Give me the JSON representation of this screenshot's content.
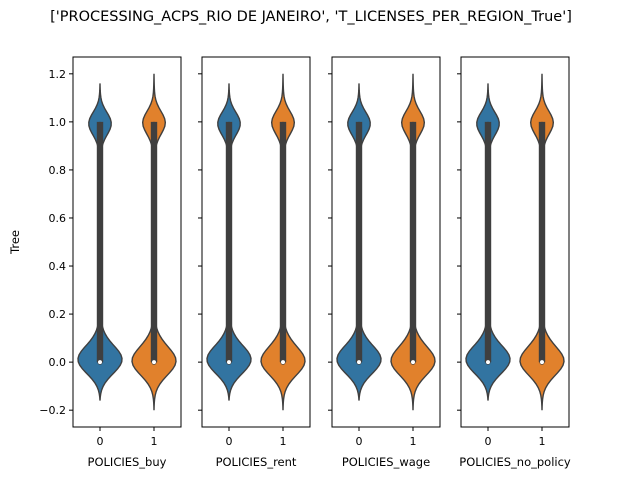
{
  "figure": {
    "title": "['PROCESSING_ACPS_RIO DE JANEIRO', 'T_LICENSES_PER_REGION_True']"
  },
  "chart_data": {
    "type": "violin",
    "title": "['PROCESSING_ACPS_RIO DE JANEIRO', 'T_LICENSES_PER_REGION_True']",
    "ylabel": "Tree",
    "ylim": [
      -0.27,
      1.27
    ],
    "yticks": [
      -0.2,
      0.0,
      0.2,
      0.4,
      0.6,
      0.8,
      1.0,
      1.2
    ],
    "ytick_labels": [
      "−0.2",
      "0.0",
      "0.2",
      "0.4",
      "0.6",
      "0.8",
      "1.0",
      "1.2"
    ],
    "shared_y": true,
    "grid": false,
    "colors": {
      "0": "#3274a1",
      "1": "#e1812c",
      "box": "#3f3f3f",
      "outline": "#3f3f3f"
    },
    "panels": [
      {
        "xlabel": "POLICIES_buy",
        "categories": [
          "0",
          "1"
        ],
        "violins": [
          {
            "category": "0",
            "min": -0.16,
            "max": 1.16,
            "q1": 0.0,
            "median": 0.0,
            "q3": 1.0,
            "whisker_low": 0.0,
            "whisker_high": 1.0
          },
          {
            "category": "1",
            "min": -0.2,
            "max": 1.2,
            "q1": 0.0,
            "median": 0.0,
            "q3": 1.0,
            "whisker_low": 0.0,
            "whisker_high": 1.0
          }
        ]
      },
      {
        "xlabel": "POLICIES_rent",
        "categories": [
          "0",
          "1"
        ],
        "violins": [
          {
            "category": "0",
            "min": -0.16,
            "max": 1.16,
            "q1": 0.0,
            "median": 0.0,
            "q3": 1.0,
            "whisker_low": 0.0,
            "whisker_high": 1.0
          },
          {
            "category": "1",
            "min": -0.2,
            "max": 1.2,
            "q1": 0.0,
            "median": 0.0,
            "q3": 1.0,
            "whisker_low": 0.0,
            "whisker_high": 1.0
          }
        ]
      },
      {
        "xlabel": "POLICIES_wage",
        "categories": [
          "0",
          "1"
        ],
        "violins": [
          {
            "category": "0",
            "min": -0.16,
            "max": 1.16,
            "q1": 0.0,
            "median": 0.0,
            "q3": 1.0,
            "whisker_low": 0.0,
            "whisker_high": 1.0
          },
          {
            "category": "1",
            "min": -0.2,
            "max": 1.2,
            "q1": 0.0,
            "median": 0.0,
            "q3": 1.0,
            "whisker_low": 0.0,
            "whisker_high": 1.0
          }
        ]
      },
      {
        "xlabel": "POLICIES_no_policy",
        "categories": [
          "0",
          "1"
        ],
        "violins": [
          {
            "category": "0",
            "min": -0.16,
            "max": 1.16,
            "q1": 0.0,
            "median": 0.0,
            "q3": 1.0,
            "whisker_low": 0.0,
            "whisker_high": 1.0
          },
          {
            "category": "1",
            "min": -0.2,
            "max": 1.2,
            "q1": 0.0,
            "median": 0.0,
            "q3": 1.0,
            "whisker_low": 0.0,
            "whisker_high": 1.0
          }
        ]
      }
    ]
  }
}
